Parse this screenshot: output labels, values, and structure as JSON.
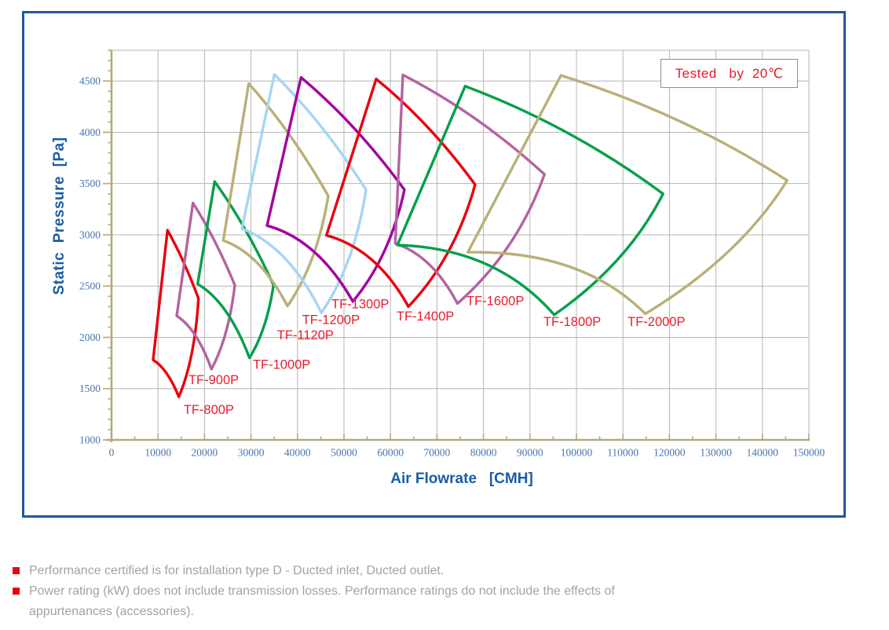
{
  "chart_data": {
    "type": "line",
    "description": "Fan operating envelopes: static pressure vs air flowrate for TF series fans",
    "legend": "Tested   by  20℃",
    "x_axis": {
      "label": "Air Flowrate   [CMH]",
      "min": 0,
      "max": 150000,
      "major_tick": 10000,
      "minor_tick": 5000,
      "tick_labels": [
        "0",
        "10000",
        "20000",
        "30000",
        "40000",
        "50000",
        "60000",
        "70000",
        "80000",
        "90000",
        "100000",
        "110000",
        "120000",
        "130000",
        "140000",
        "150000"
      ]
    },
    "y_axis": {
      "label": "Static  Pressure  [Pa]",
      "min": 1000,
      "max": 4800,
      "major_tick": 500,
      "minor_tick": 100,
      "last_labeled_tick": 4500,
      "tick_labels": [
        "1000",
        "1500",
        "2000",
        "2500",
        "3000",
        "3500",
        "4000",
        "4500"
      ]
    },
    "grid": true,
    "legend_position": "top-right",
    "series": [
      {
        "name": "TF-800P",
        "color": "#e8000f",
        "envelope_quad_cmh_pa": {
          "left": [
            8950,
            1780
          ],
          "top": [
            12040,
            3045
          ],
          "right": [
            18700,
            2380
          ],
          "bottom": [
            14480,
            1420
          ]
        },
        "label_at_cmh_pa": [
          15500,
          1340
        ]
      },
      {
        "name": "TF-900P",
        "color": "#b4639f",
        "envelope_quad_cmh_pa": {
          "left": [
            14020,
            2210
          ],
          "top": [
            17520,
            3310
          ],
          "right": [
            26520,
            2510
          ],
          "bottom": [
            21500,
            1690
          ]
        },
        "label_at_cmh_pa": [
          16550,
          1630
        ]
      },
      {
        "name": "TF-1000P",
        "color": "#00a049",
        "envelope_quad_cmh_pa": {
          "left": [
            18530,
            2520
          ],
          "top": [
            22180,
            3520
          ],
          "right": [
            34850,
            2510
          ],
          "bottom": [
            29680,
            1800
          ]
        },
        "label_at_cmh_pa": [
          30400,
          1780
        ]
      },
      {
        "name": "TF-1120P",
        "color": "#b9b078",
        "envelope_quad_cmh_pa": {
          "left": [
            24040,
            2945
          ],
          "top": [
            29510,
            4475
          ],
          "right": [
            46620,
            3380
          ],
          "bottom": [
            37840,
            2305
          ]
        },
        "label_at_cmh_pa": [
          35600,
          2065
        ]
      },
      {
        "name": "TF-1200P",
        "color": "#a5d6f2",
        "envelope_quad_cmh_pa": {
          "left": [
            28040,
            3060
          ],
          "top": [
            35020,
            4565
          ],
          "right": [
            54730,
            3440
          ],
          "bottom": [
            45150,
            2240
          ]
        },
        "label_at_cmh_pa": [
          41000,
          2215
        ]
      },
      {
        "name": "TF-1300P",
        "color": "#a400a0",
        "envelope_quad_cmh_pa": {
          "left": [
            33450,
            3090
          ],
          "top": [
            40760,
            4535
          ],
          "right": [
            63000,
            3440
          ],
          "bottom": [
            51910,
            2350
          ]
        },
        "label_at_cmh_pa": [
          47300,
          2370
        ]
      },
      {
        "name": "TF-1400P",
        "color": "#e8000f",
        "envelope_quad_cmh_pa": {
          "left": [
            46230,
            2995
          ],
          "top": [
            56930,
            4520
          ],
          "right": [
            78210,
            3490
          ],
          "bottom": [
            63850,
            2300
          ]
        },
        "label_at_cmh_pa": [
          61300,
          2250
        ]
      },
      {
        "name": "TF-1600P",
        "color": "#b4639f",
        "envelope_quad_cmh_pa": {
          "left": [
            61030,
            2915
          ],
          "top": [
            62670,
            4560
          ],
          "right": [
            93130,
            3590
          ],
          "bottom": [
            74410,
            2330
          ]
        },
        "label_at_cmh_pa": [
          76350,
          2400
        ]
      },
      {
        "name": "TF-1800P",
        "color": "#00a049",
        "envelope_quad_cmh_pa": {
          "left": [
            61490,
            2900
          ],
          "top": [
            76070,
            4450
          ],
          "right": [
            118630,
            3400
          ],
          "bottom": [
            95220,
            2220
          ]
        },
        "label_at_cmh_pa": [
          92900,
          2195
        ]
      },
      {
        "name": "TF-2000P",
        "color": "#b9b078",
        "envelope_quad_cmh_pa": {
          "left": [
            76640,
            2830
          ],
          "top": [
            96670,
            4555
          ],
          "right": [
            145320,
            3530
          ],
          "bottom": [
            114820,
            2230
          ]
        },
        "label_at_cmh_pa": [
          111000,
          2195
        ]
      }
    ],
    "style": {
      "grid_color": "#b5b5b5",
      "axis_color": "#b3aa7c",
      "tick_label_color": "#4476ad",
      "series_label_color": "#ea1b2d",
      "stroke_width": 3.4
    }
  },
  "footnotes": [
    "Performance certified is for installation type D - Ducted inlet, Ducted outlet.",
    "Power rating (kW) does not include transmission losses. Performance ratings do not include the effects of",
    "appurtenances (accessories)."
  ]
}
